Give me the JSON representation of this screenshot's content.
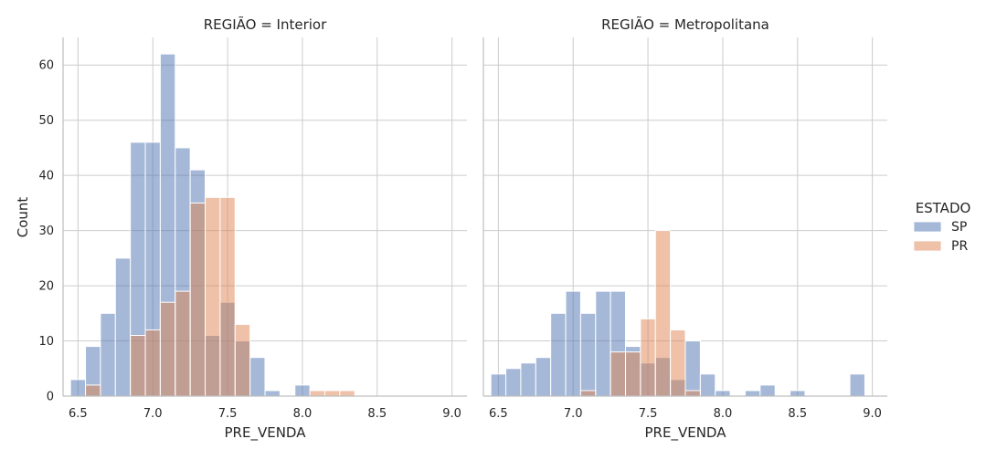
{
  "chart_data": {
    "type": "bar",
    "chart_kind": "faceted overlapping histogram",
    "ylabel": "Count",
    "ylim": [
      0,
      65
    ],
    "yticks": [
      0,
      10,
      20,
      30,
      40,
      50,
      60
    ],
    "xticks": [
      "6.5",
      "7.0",
      "7.5",
      "8.0",
      "8.5",
      "9.0"
    ],
    "grid": true,
    "legend": {
      "title": "ESTADO",
      "placement": "right",
      "items": [
        {
          "name": "SP",
          "color": "#4c72b0"
        },
        {
          "name": "PR",
          "color": "#dd8452"
        }
      ]
    },
    "colors": {
      "SP": "#4c72b0",
      "PR": "#dd8452",
      "grid": "#cccccc",
      "axis": "#bfbfbf"
    },
    "bin_edges": [
      6.45,
      6.55,
      6.65,
      6.75,
      6.85,
      6.95,
      7.05,
      7.15,
      7.25,
      7.35,
      7.45,
      7.55,
      7.65,
      7.75,
      7.85,
      7.95,
      8.05,
      8.15,
      8.25,
      8.35,
      8.45,
      8.55,
      8.65,
      8.75,
      8.85,
      8.95,
      9.05
    ],
    "panels": [
      {
        "title": "REGIÃO = Interior",
        "xlabel": "PRE_VENDA",
        "xlim": [
          6.4,
          9.1
        ],
        "series": [
          {
            "name": "SP",
            "values": [
              3,
              9,
              15,
              25,
              46,
              46,
              62,
              45,
              41,
              11,
              17,
              10,
              7,
              1,
              0,
              2,
              0,
              0,
              0,
              0,
              0,
              0,
              0,
              0,
              0,
              0
            ]
          },
          {
            "name": "PR",
            "values": [
              0,
              2,
              0,
              0,
              11,
              12,
              17,
              19,
              35,
              36,
              36,
              13,
              0,
              0,
              0,
              0,
              1,
              1,
              1,
              0,
              0,
              0,
              0,
              0,
              0,
              0
            ]
          }
        ]
      },
      {
        "title": "REGIÃO = Metropolitana",
        "xlabel": "PRE_VENDA",
        "xlim": [
          6.4,
          9.1
        ],
        "series": [
          {
            "name": "SP",
            "values": [
              4,
              5,
              6,
              7,
              15,
              19,
              15,
              19,
              19,
              9,
              6,
              7,
              3,
              10,
              4,
              1,
              0,
              1,
              2,
              0,
              1,
              0,
              0,
              0,
              4,
              0
            ]
          },
          {
            "name": "PR",
            "values": [
              0,
              0,
              0,
              0,
              0,
              0,
              1,
              0,
              8,
              8,
              14,
              30,
              12,
              1,
              0,
              0,
              0,
              0,
              0,
              0,
              0,
              0,
              0,
              0,
              0,
              0
            ]
          }
        ]
      }
    ]
  }
}
